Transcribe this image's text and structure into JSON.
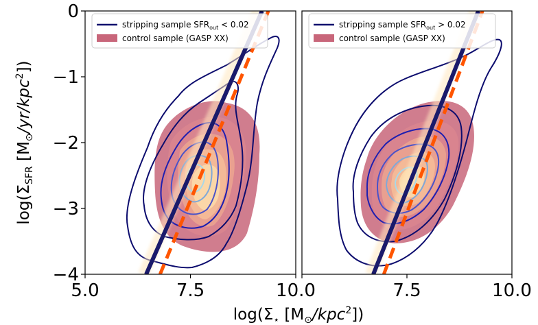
{
  "chart_data": [
    {
      "type": "scatter",
      "panel": "left",
      "xlim": [
        5.0,
        10.0
      ],
      "ylim": [
        -4,
        0
      ],
      "xticks": [
        "5.0",
        "7.5",
        "10.0"
      ],
      "yticks": [
        "0",
        "−1",
        "−2",
        "−3",
        "−4"
      ],
      "legend_position": "top-right",
      "series": [
        {
          "name": "stripping sample SFR_out < 0.02",
          "legend_main": "stripping sample SFR",
          "legend_sub": "out",
          "legend_tail": " < 0.02",
          "kind": "contours",
          "color": "#0c0c6e",
          "center": [
            7.55,
            -2.6
          ]
        },
        {
          "name": "control sample (GASP XX)",
          "kind": "filled contours",
          "color": "#c8667a",
          "center": [
            7.6,
            -2.55
          ]
        }
      ],
      "fit_lines": [
        {
          "style": "solid",
          "color": "#1a1a6b",
          "points": [
            [
              6.45,
              -4.0
            ],
            [
              9.2,
              0.0
            ]
          ]
        },
        {
          "style": "dashed",
          "color": "#ff5500",
          "points": [
            [
              6.78,
              -4.0
            ],
            [
              9.35,
              0.0
            ]
          ]
        }
      ]
    },
    {
      "type": "scatter",
      "panel": "right",
      "xlim": [
        5.0,
        10.0
      ],
      "ylim": [
        -4,
        0
      ],
      "xticks": [
        "",
        "7.5",
        "10.0"
      ],
      "yticks": [],
      "legend_position": "top-right",
      "series": [
        {
          "name": "stripping sample SFR_out > 0.02",
          "legend_main": "stripping sample SFR",
          "legend_sub": "out",
          "legend_tail": " > 0.02",
          "kind": "contours",
          "color": "#0c0c6e",
          "center": [
            7.65,
            -2.6
          ]
        },
        {
          "name": "control sample (GASP XX)",
          "kind": "filled contours",
          "color": "#c8667a",
          "center": [
            7.6,
            -2.55
          ]
        }
      ],
      "fit_lines": [
        {
          "style": "solid",
          "color": "#1a1a6b",
          "points": [
            [
              6.7,
              -4.0
            ],
            [
              9.2,
              0.0
            ]
          ]
        },
        {
          "style": "dashed",
          "color": "#ff5500",
          "points": [
            [
              6.95,
              -4.0
            ],
            [
              9.3,
              0.0
            ]
          ]
        }
      ]
    }
  ],
  "axes": {
    "x_label_main": "log(Σ",
    "x_label_sub": "⋆",
    "x_label_rest": " [M",
    "x_label_sub2": "⊙",
    "x_label_end": "/kpc",
    "x_label_sup": "2",
    "x_label_close": "])",
    "y_label_main": "log(Σ",
    "y_label_sub": "SFR",
    "y_label_rest": " [M",
    "y_label_sub2": "⊙",
    "y_label_end": "/yr/kpc",
    "y_label_sup": "2",
    "y_label_close": "])"
  },
  "legend": {
    "control_label": "control sample (GASP XX)"
  },
  "colors": {
    "navy": "#0c0c6e",
    "rose": "#c8667a",
    "orange": "#ff5500",
    "lightblue": "#7fa8d8"
  }
}
